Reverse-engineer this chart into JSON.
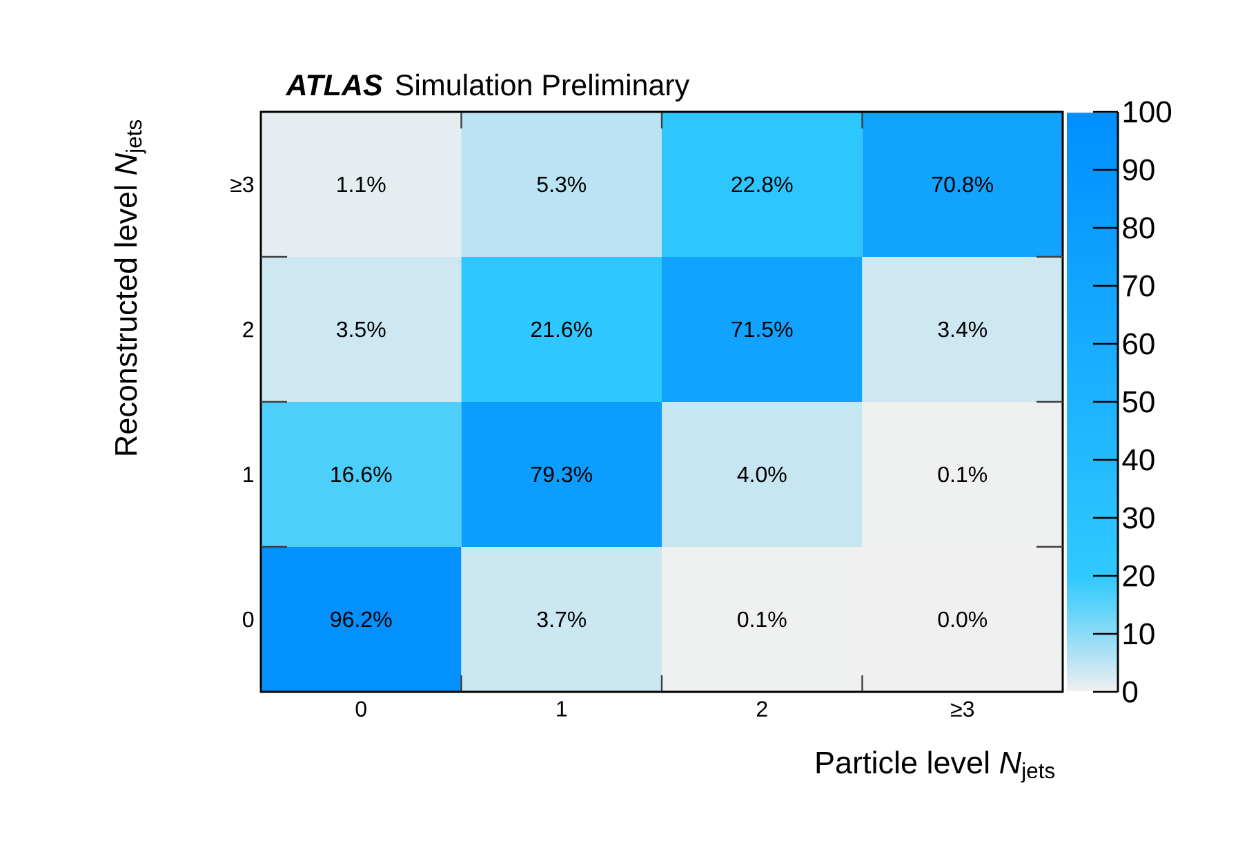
{
  "chart_data": {
    "type": "heatmap",
    "title": "ATLAS",
    "subtitle": "Simulation Preliminary",
    "xlabel": "Particle level *N*$_{jets}$",
    "ylabel": "Reconstructed level *N*$_{jets}$",
    "categories": [
      "0",
      "1",
      "2",
      "≥3"
    ],
    "y_categories": [
      "≥3",
      "2",
      "1",
      "0"
    ],
    "cells": [
      [
        1.1,
        5.3,
        22.8,
        70.8
      ],
      [
        3.5,
        21.6,
        71.5,
        3.4
      ],
      [
        16.6,
        79.3,
        4.0,
        0.1
      ],
      [
        96.2,
        3.7,
        0.1,
        0.0
      ]
    ],
    "cell_labels": [
      [
        "1.1%",
        "5.3%",
        "22.8%",
        "70.8%"
      ],
      [
        "3.5%",
        "21.6%",
        "71.5%",
        "3.4%"
      ],
      [
        "16.6%",
        "79.3%",
        "4.0%",
        "0.1%"
      ],
      [
        "96.2%",
        "3.7%",
        "0.1%",
        "0.0%"
      ]
    ],
    "clim": [
      0,
      100
    ],
    "cticks": [
      0,
      10,
      20,
      30,
      40,
      50,
      60,
      70,
      80,
      90,
      100
    ]
  }
}
